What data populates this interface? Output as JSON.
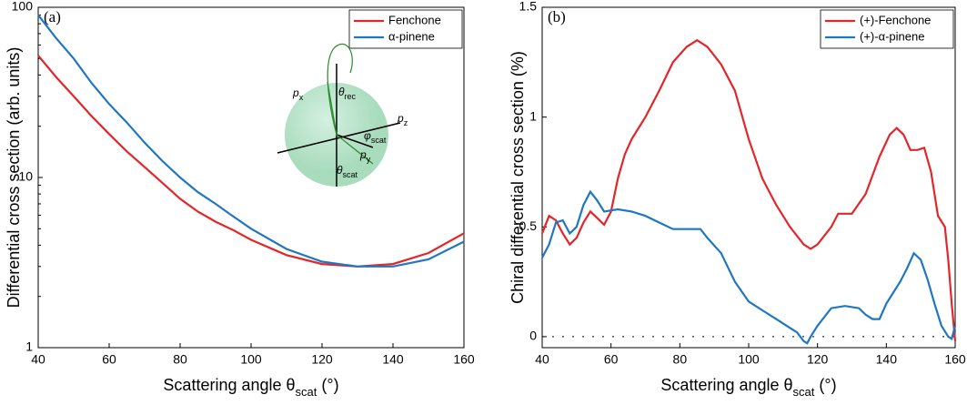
{
  "chart_data": [
    {
      "type": "line",
      "panel_label": "(a)",
      "y_label": "Differential cross section  (arb. units)",
      "x_label": "Scattering angle θ",
      "x_label_sub": "scat",
      "x_label_unit": " (°)",
      "xlim": [
        40,
        160
      ],
      "xticks": [
        40,
        60,
        80,
        100,
        120,
        140,
        160
      ],
      "ylim": [
        1,
        100
      ],
      "yticks": [
        1,
        10,
        100
      ],
      "log_y": true,
      "legend": "top-right",
      "series": [
        {
          "name": "Fenchone",
          "color": "#e3262a",
          "x": [
            40,
            45,
            50,
            55,
            60,
            65,
            70,
            75,
            80,
            85,
            90,
            95,
            100,
            110,
            120,
            130,
            140,
            150,
            160
          ],
          "values": [
            52,
            39,
            30,
            23,
            18,
            14.2,
            11.5,
            9.3,
            7.5,
            6.3,
            5.5,
            4.9,
            4.3,
            3.5,
            3.1,
            3.0,
            3.1,
            3.6,
            4.7
          ]
        },
        {
          "name": "α-pinene",
          "color": "#1f77c4",
          "x": [
            40,
            45,
            50,
            55,
            60,
            65,
            70,
            75,
            80,
            85,
            90,
            95,
            100,
            110,
            120,
            130,
            140,
            150,
            160
          ],
          "values": [
            90,
            66,
            50,
            36,
            27,
            21,
            16,
            12.5,
            10,
            8.2,
            7,
            5.9,
            5,
            3.8,
            3.2,
            3.0,
            3.0,
            3.3,
            4.2
          ]
        }
      ],
      "inset_labels": [
        {
          "text": "p",
          "sub": "x"
        },
        {
          "text": "θ",
          "sub": "rec"
        },
        {
          "text": "p",
          "sub": "z"
        },
        {
          "text": "φ",
          "sub": "scat"
        },
        {
          "text": "p",
          "sub": "y"
        },
        {
          "text": "θ",
          "sub": "scat"
        }
      ]
    },
    {
      "type": "line",
      "panel_label": "(b)",
      "y_label": "Chiral differential cross section  (%)",
      "x_label": "Scattering angle θ",
      "x_label_sub": "scat",
      "x_label_unit": " (°)",
      "xlim": [
        40,
        160
      ],
      "xticks": [
        40,
        60,
        80,
        100,
        120,
        140,
        160
      ],
      "ylim": [
        -0.05,
        1.5
      ],
      "yticks": [
        0,
        0.5,
        1,
        1.5
      ],
      "zero_line": true,
      "legend": "top-right",
      "series": [
        {
          "name": "(+)-Fenchone",
          "color": "#e3262a",
          "x": [
            40,
            42,
            44,
            46,
            48,
            50,
            52,
            54,
            56,
            58,
            60,
            62,
            64,
            66,
            70,
            74,
            78,
            82,
            85,
            88,
            92,
            96,
            100,
            104,
            108,
            112,
            116,
            118,
            120,
            124,
            126,
            130,
            134,
            138,
            141,
            143,
            145,
            147,
            149,
            151,
            153,
            155,
            157,
            158,
            159,
            160
          ],
          "values": [
            0.47,
            0.55,
            0.53,
            0.47,
            0.42,
            0.45,
            0.52,
            0.57,
            0.54,
            0.51,
            0.57,
            0.72,
            0.83,
            0.9,
            1.0,
            1.12,
            1.25,
            1.32,
            1.35,
            1.32,
            1.24,
            1.12,
            0.9,
            0.72,
            0.6,
            0.5,
            0.42,
            0.4,
            0.42,
            0.5,
            0.56,
            0.56,
            0.65,
            0.82,
            0.92,
            0.95,
            0.92,
            0.85,
            0.85,
            0.86,
            0.75,
            0.55,
            0.5,
            0.35,
            0.15,
            -0.02
          ]
        },
        {
          "name": "(+)-α-pinene",
          "color": "#1f77c4",
          "x": [
            40,
            42,
            44,
            46,
            48,
            50,
            52,
            54,
            56,
            58,
            62,
            66,
            70,
            74,
            78,
            82,
            86,
            88,
            92,
            96,
            100,
            104,
            108,
            112,
            114,
            116,
            117,
            118,
            120,
            124,
            128,
            132,
            134,
            136,
            138,
            140,
            144,
            146,
            148,
            150,
            152,
            154,
            156,
            158,
            159,
            160
          ],
          "values": [
            0.36,
            0.42,
            0.52,
            0.53,
            0.47,
            0.5,
            0.6,
            0.66,
            0.62,
            0.57,
            0.58,
            0.57,
            0.55,
            0.52,
            0.49,
            0.49,
            0.49,
            0.45,
            0.38,
            0.25,
            0.16,
            0.12,
            0.08,
            0.04,
            0.02,
            -0.02,
            -0.03,
            0.0,
            0.05,
            0.13,
            0.14,
            0.13,
            0.1,
            0.08,
            0.08,
            0.15,
            0.25,
            0.31,
            0.38,
            0.35,
            0.26,
            0.15,
            0.05,
            0.0,
            -0.01,
            0.05
          ]
        }
      ]
    }
  ]
}
